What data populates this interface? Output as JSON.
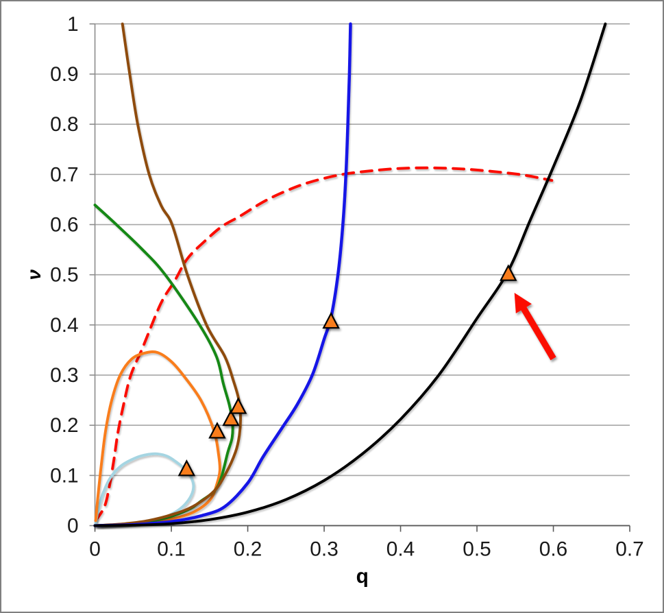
{
  "figure": {
    "background": "#ffffff",
    "border_color": "#7f7f7f"
  },
  "chart_data": {
    "type": "line",
    "title": "",
    "xlabel": "q",
    "ylabel": "ν",
    "xlim": [
      0,
      0.7
    ],
    "ylim": [
      0,
      1
    ],
    "grid": "horizontal",
    "legend": "none",
    "x_ticks": [
      0,
      0.1,
      0.2,
      0.3,
      0.4,
      0.5,
      0.6,
      0.7
    ],
    "x_tick_labels": [
      "0",
      "0.1",
      "0.2",
      "0.3",
      "0.4",
      "0.5",
      "0.6",
      "0.7"
    ],
    "y_ticks": [
      0,
      0.1,
      0.2,
      0.3,
      0.4,
      0.5,
      0.6,
      0.7,
      0.8,
      0.9,
      1
    ],
    "y_tick_labels": [
      "0",
      "0.1",
      "0.2",
      "0.3",
      "0.4",
      "0.5",
      "0.6",
      "0.7",
      "0.8",
      "0.9",
      "1"
    ],
    "grid_color": "#a6a6a6",
    "axis_color": "#595959",
    "tick_label_color": "#1a1a1a",
    "series": [
      {
        "name": "red-dashed-boundary",
        "color": "#fb0a06",
        "width": 4,
        "dash": "16 11",
        "points": [
          [
            0.001,
            0.01
          ],
          [
            0.0125,
            0.038
          ],
          [
            0.019,
            0.079
          ],
          [
            0.025,
            0.133
          ],
          [
            0.03,
            0.185
          ],
          [
            0.038,
            0.245
          ],
          [
            0.047,
            0.3
          ],
          [
            0.0625,
            0.355
          ],
          [
            0.086,
            0.442
          ],
          [
            0.104,
            0.487
          ],
          [
            0.121,
            0.532
          ],
          [
            0.143,
            0.566
          ],
          [
            0.166,
            0.596
          ],
          [
            0.19,
            0.617
          ],
          [
            0.22,
            0.645
          ],
          [
            0.25,
            0.667
          ],
          [
            0.28,
            0.684
          ],
          [
            0.32,
            0.699
          ],
          [
            0.36,
            0.707
          ],
          [
            0.4,
            0.712
          ],
          [
            0.44,
            0.713
          ],
          [
            0.48,
            0.711
          ],
          [
            0.52,
            0.706
          ],
          [
            0.56,
            0.699
          ],
          [
            0.598,
            0.688
          ]
        ]
      },
      {
        "name": "light-blue-loop-trajectory",
        "color": "#a5d5e2",
        "width": 4,
        "dash": null,
        "points": [
          [
            0.001,
            0.005
          ],
          [
            0.004,
            0.03
          ],
          [
            0.01,
            0.062
          ],
          [
            0.02,
            0.095
          ],
          [
            0.035,
            0.12
          ],
          [
            0.055,
            0.136
          ],
          [
            0.07,
            0.142
          ],
          [
            0.082,
            0.143
          ],
          [
            0.095,
            0.138
          ],
          [
            0.108,
            0.125
          ],
          [
            0.119,
            0.111
          ],
          [
            0.126,
            0.096
          ],
          [
            0.129,
            0.079
          ],
          [
            0.126,
            0.06
          ],
          [
            0.117,
            0.041
          ],
          [
            0.104,
            0.026
          ],
          [
            0.085,
            0.013
          ],
          [
            0.058,
            0.006
          ],
          [
            0.028,
            0.002
          ],
          [
            0.003,
            0.0
          ]
        ]
      },
      {
        "name": "orange-loop-trajectory",
        "color": "#f97d1b",
        "width": 4,
        "dash": null,
        "points": [
          [
            0.001,
            0.01
          ],
          [
            0.004,
            0.06
          ],
          [
            0.009,
            0.13
          ],
          [
            0.014,
            0.19
          ],
          [
            0.022,
            0.25
          ],
          [
            0.033,
            0.3
          ],
          [
            0.048,
            0.332
          ],
          [
            0.065,
            0.344
          ],
          [
            0.082,
            0.345
          ],
          [
            0.1,
            0.327
          ],
          [
            0.117,
            0.297
          ],
          [
            0.139,
            0.249
          ],
          [
            0.156,
            0.188
          ],
          [
            0.162,
            0.14
          ],
          [
            0.1635,
            0.11
          ],
          [
            0.16,
            0.085
          ],
          [
            0.151,
            0.052
          ],
          [
            0.129,
            0.027
          ],
          [
            0.1,
            0.013
          ],
          [
            0.07,
            0.006
          ],
          [
            0.04,
            0.002
          ],
          [
            0.008,
            0.0
          ]
        ]
      },
      {
        "name": "green-trajectory",
        "color": "#128812",
        "width": 4,
        "dash": null,
        "points": [
          [
            0.0,
            0.639
          ],
          [
            0.028,
            0.6
          ],
          [
            0.061,
            0.552
          ],
          [
            0.092,
            0.5
          ],
          [
            0.137,
            0.4
          ],
          [
            0.159,
            0.337
          ],
          [
            0.168,
            0.283
          ],
          [
            0.176,
            0.24
          ],
          [
            0.18,
            0.205
          ],
          [
            0.1795,
            0.175
          ],
          [
            0.174,
            0.147
          ],
          [
            0.161,
            0.079
          ],
          [
            0.138,
            0.048
          ],
          [
            0.121,
            0.031
          ],
          [
            0.092,
            0.015
          ],
          [
            0.06,
            0.006
          ],
          [
            0.03,
            0.002
          ],
          [
            0.004,
            0.0
          ]
        ]
      },
      {
        "name": "brown-trajectory",
        "color": "#8e4b0e",
        "width": 4,
        "dash": null,
        "points": [
          [
            0.036,
            1.0
          ],
          [
            0.0455,
            0.9
          ],
          [
            0.056,
            0.8
          ],
          [
            0.071,
            0.7
          ],
          [
            0.087,
            0.637
          ],
          [
            0.101,
            0.6
          ],
          [
            0.121,
            0.5
          ],
          [
            0.146,
            0.4
          ],
          [
            0.17,
            0.337
          ],
          [
            0.181,
            0.29
          ],
          [
            0.1885,
            0.25
          ],
          [
            0.1905,
            0.215
          ],
          [
            0.189,
            0.18
          ],
          [
            0.184,
            0.147
          ],
          [
            0.172,
            0.106
          ],
          [
            0.156,
            0.069
          ],
          [
            0.128,
            0.038
          ],
          [
            0.101,
            0.022
          ],
          [
            0.07,
            0.01
          ],
          [
            0.04,
            0.004
          ],
          [
            0.012,
            0.001
          ],
          [
            0.002,
            0.0
          ]
        ]
      },
      {
        "name": "blue-trajectory",
        "color": "#1414e6",
        "width": 4.5,
        "dash": null,
        "points": [
          [
            0.0,
            0.0
          ],
          [
            0.05,
            0.002
          ],
          [
            0.1,
            0.008
          ],
          [
            0.14,
            0.02
          ],
          [
            0.17,
            0.038
          ],
          [
            0.2,
            0.085
          ],
          [
            0.22,
            0.137
          ],
          [
            0.245,
            0.195
          ],
          [
            0.265,
            0.242
          ],
          [
            0.285,
            0.302
          ],
          [
            0.3,
            0.372
          ],
          [
            0.309,
            0.415
          ],
          [
            0.318,
            0.5
          ],
          [
            0.3245,
            0.6
          ],
          [
            0.3285,
            0.7
          ],
          [
            0.331,
            0.8
          ],
          [
            0.333,
            0.9
          ],
          [
            0.3345,
            1.0
          ]
        ]
      },
      {
        "name": "black-trajectory",
        "color": "#000000",
        "width": 4,
        "dash": null,
        "points": [
          [
            0.0,
            0.0
          ],
          [
            0.05,
            0.001
          ],
          [
            0.1,
            0.004
          ],
          [
            0.15,
            0.012
          ],
          [
            0.2,
            0.027
          ],
          [
            0.25,
            0.052
          ],
          [
            0.3,
            0.09
          ],
          [
            0.35,
            0.143
          ],
          [
            0.4,
            0.212
          ],
          [
            0.45,
            0.3
          ],
          [
            0.5,
            0.413
          ],
          [
            0.54,
            0.505
          ],
          [
            0.57,
            0.61
          ],
          [
            0.6,
            0.715
          ],
          [
            0.635,
            0.845
          ],
          [
            0.668,
            1.0
          ]
        ]
      }
    ],
    "markers": {
      "shape": "triangle-up",
      "fill": "#f97d1b",
      "stroke": "#000000",
      "points": [
        [
          0.12,
          0.111
        ],
        [
          0.16,
          0.186
        ],
        [
          0.178,
          0.211
        ],
        [
          0.1875,
          0.235
        ],
        [
          0.309,
          0.405
        ],
        [
          0.541,
          0.5
        ]
      ]
    },
    "annotation_arrow": {
      "color": "#fb0a06",
      "from": [
        0.6,
        0.333
      ],
      "to": [
        0.549,
        0.464
      ]
    }
  }
}
